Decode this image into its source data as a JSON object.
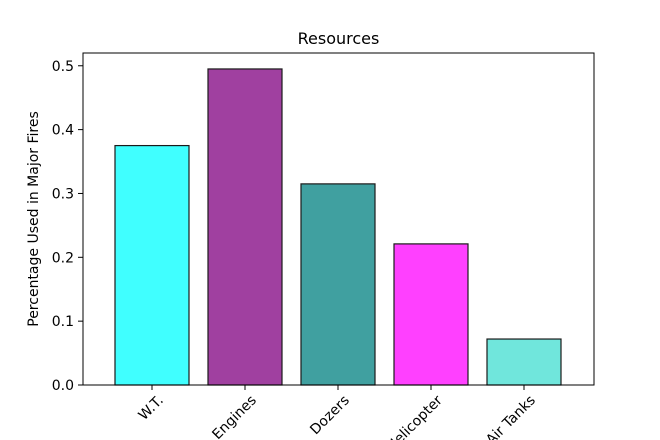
{
  "chart_data": {
    "type": "bar",
    "title": "Resources",
    "xlabel": "",
    "ylabel": "Percentage Used in Major Fires",
    "categories": [
      "W.T.",
      "Engines",
      "Dozers",
      "Helicopter",
      "Air Tanks"
    ],
    "values": [
      0.375,
      0.495,
      0.315,
      0.221,
      0.072
    ],
    "ylim": [
      0,
      0.52
    ],
    "yticks": [
      0.0,
      0.1,
      0.2,
      0.3,
      0.4,
      0.5
    ],
    "ytick_labels": [
      "0.0",
      "0.1",
      "0.2",
      "0.3",
      "0.4",
      "0.5"
    ],
    "bar_colors": [
      "#40ffff",
      "#a040a0",
      "#40a0a0",
      "#ff40ff",
      "#70e6dc"
    ],
    "edge_color": "#1a1a1a",
    "grid": false,
    "legend": "none"
  }
}
